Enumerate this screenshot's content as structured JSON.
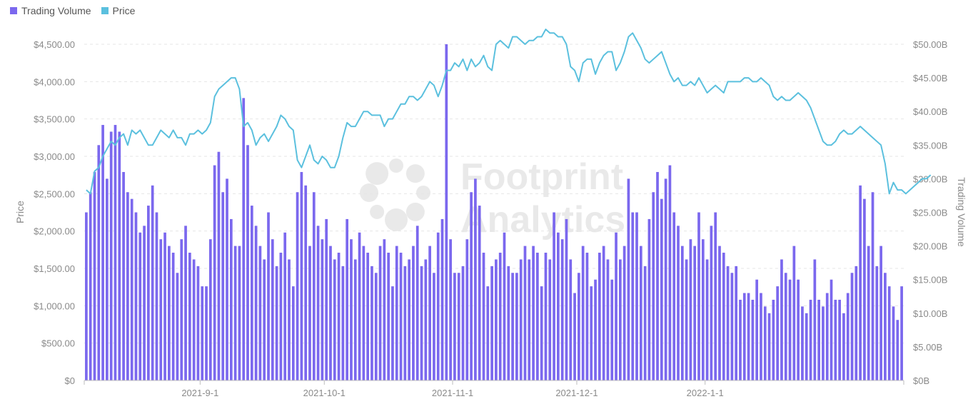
{
  "colors": {
    "volume": "#7B68EE",
    "price": "#5BC0DE",
    "grid": "#e6e6e6",
    "axis": "#bdbdbd"
  },
  "legend": [
    {
      "label": "Trading Volume",
      "color": "#7B68EE"
    },
    {
      "label": "Price",
      "color": "#5BC0DE"
    }
  ],
  "watermark": {
    "line1": "Footprint",
    "line2": "Analytics"
  },
  "chart_data": {
    "type": "bar+line",
    "x_start": "2021-08-04",
    "x_ticks": [
      "2021-9-1",
      "2021-10-1",
      "2021-11-1",
      "2021-12-1",
      "2022-1-1"
    ],
    "x_tick_dates": [
      "2021-09-01",
      "2021-10-01",
      "2021-11-01",
      "2021-12-01",
      "2022-01-01"
    ],
    "y_left": {
      "label": "Price",
      "ticks": [
        "$0",
        "$500.00",
        "$1,000.00",
        "$1,500.00",
        "$2,000.00",
        "$2,500.00",
        "$3,000.00",
        "$3,500.00",
        "$4,000.00",
        "$4,500.00"
      ],
      "range": [
        0,
        4500
      ]
    },
    "y_right": {
      "label": "Trading Volume",
      "ticks": [
        "$0B",
        "$5.00B",
        "$10.00B",
        "$15.00B",
        "$20.00B",
        "$25.00B",
        "$30.00B",
        "$35.00B",
        "$40.00B",
        "$45.00B",
        "$50.00B"
      ],
      "range": [
        0,
        50
      ]
    },
    "series": [
      {
        "name": "Trading Volume",
        "type": "bar",
        "axis": "right",
        "unit": "B",
        "values": [
          25,
          28,
          31,
          35,
          38,
          30,
          37,
          38,
          37,
          31,
          28,
          27,
          25,
          22,
          23,
          26,
          29,
          25,
          21,
          22,
          20,
          19,
          16,
          21,
          23,
          19,
          18,
          17,
          14,
          14,
          21,
          32,
          34,
          28,
          30,
          24,
          20,
          20,
          42,
          35,
          26,
          23,
          20,
          18,
          25,
          21,
          17,
          19,
          22,
          18,
          14,
          28,
          31,
          29,
          20,
          28,
          23,
          21,
          24,
          20,
          18,
          19,
          17,
          24,
          21,
          18,
          22,
          20,
          19,
          17,
          16,
          20,
          21,
          19,
          14,
          20,
          19,
          17,
          18,
          20,
          23,
          17,
          18,
          20,
          16,
          22,
          24,
          50,
          21,
          16,
          16,
          17,
          21,
          28,
          30,
          26,
          19,
          14,
          17,
          18,
          19,
          22,
          17,
          16,
          16,
          18,
          20,
          18,
          20,
          19,
          14,
          19,
          18,
          25,
          22,
          21,
          24,
          18,
          13,
          16,
          20,
          19,
          14,
          15,
          19,
          20,
          18,
          15,
          22,
          18,
          20,
          30,
          25,
          25,
          20,
          17,
          24,
          28,
          31,
          27,
          30,
          32,
          25,
          23,
          20,
          18,
          21,
          20,
          25,
          21,
          18,
          23,
          25,
          20,
          19,
          17,
          16,
          17,
          12,
          13,
          13,
          12,
          15,
          13,
          11,
          10,
          12,
          14,
          18,
          16,
          15,
          20,
          15,
          11,
          10,
          12,
          18,
          12,
          11,
          13,
          15,
          12,
          12,
          10,
          13,
          16,
          17,
          29,
          27,
          20,
          28,
          17,
          20,
          16,
          14,
          11,
          9,
          14
        ]
      },
      {
        "name": "Price",
        "type": "line",
        "axis": "left",
        "values": [
          2550,
          2500,
          2800,
          2850,
          3000,
          3100,
          3200,
          3150,
          3250,
          3300,
          3150,
          3350,
          3300,
          3350,
          3250,
          3150,
          3150,
          3250,
          3350,
          3300,
          3250,
          3350,
          3250,
          3250,
          3150,
          3300,
          3300,
          3350,
          3300,
          3350,
          3450,
          3800,
          3900,
          3950,
          4000,
          4050,
          4050,
          3900,
          3400,
          3450,
          3350,
          3150,
          3250,
          3300,
          3200,
          3300,
          3400,
          3550,
          3500,
          3400,
          3350,
          2950,
          2850,
          3000,
          3150,
          2950,
          2900,
          3000,
          2950,
          2850,
          2850,
          3000,
          3250,
          3450,
          3400,
          3400,
          3500,
          3600,
          3600,
          3550,
          3550,
          3550,
          3400,
          3500,
          3500,
          3600,
          3700,
          3700,
          3800,
          3800,
          3750,
          3800,
          3900,
          4000,
          3950,
          3800,
          3950,
          4150,
          4150,
          4250,
          4200,
          4300,
          4150,
          4300,
          4200,
          4250,
          4350,
          4200,
          4150,
          4500,
          4550,
          4500,
          4450,
          4600,
          4600,
          4550,
          4500,
          4550,
          4550,
          4600,
          4600,
          4700,
          4650,
          4650,
          4600,
          4600,
          4500,
          4200,
          4150,
          4000,
          4250,
          4300,
          4300,
          4100,
          4250,
          4350,
          4400,
          4400,
          4150,
          4250,
          4400,
          4600,
          4650,
          4550,
          4450,
          4300,
          4250,
          4300,
          4350,
          4400,
          4250,
          4100,
          4000,
          4050,
          3950,
          3950,
          4000,
          3950,
          4050,
          3950,
          3850,
          3900,
          3950,
          3900,
          3850,
          4000,
          4000,
          4000,
          4000,
          4050,
          4050,
          4000,
          4000,
          4050,
          4000,
          3950,
          3800,
          3750,
          3800,
          3750,
          3750,
          3800,
          3850,
          3800,
          3750,
          3650,
          3500,
          3350,
          3200,
          3150,
          3150,
          3200,
          3300,
          3350,
          3300,
          3300,
          3350,
          3400,
          3350,
          3300,
          3250,
          3200,
          3150,
          2900,
          2500,
          2650,
          2550,
          2550,
          2500,
          2550,
          2600,
          2650,
          2700,
          2700,
          2750
        ]
      }
    ]
  }
}
